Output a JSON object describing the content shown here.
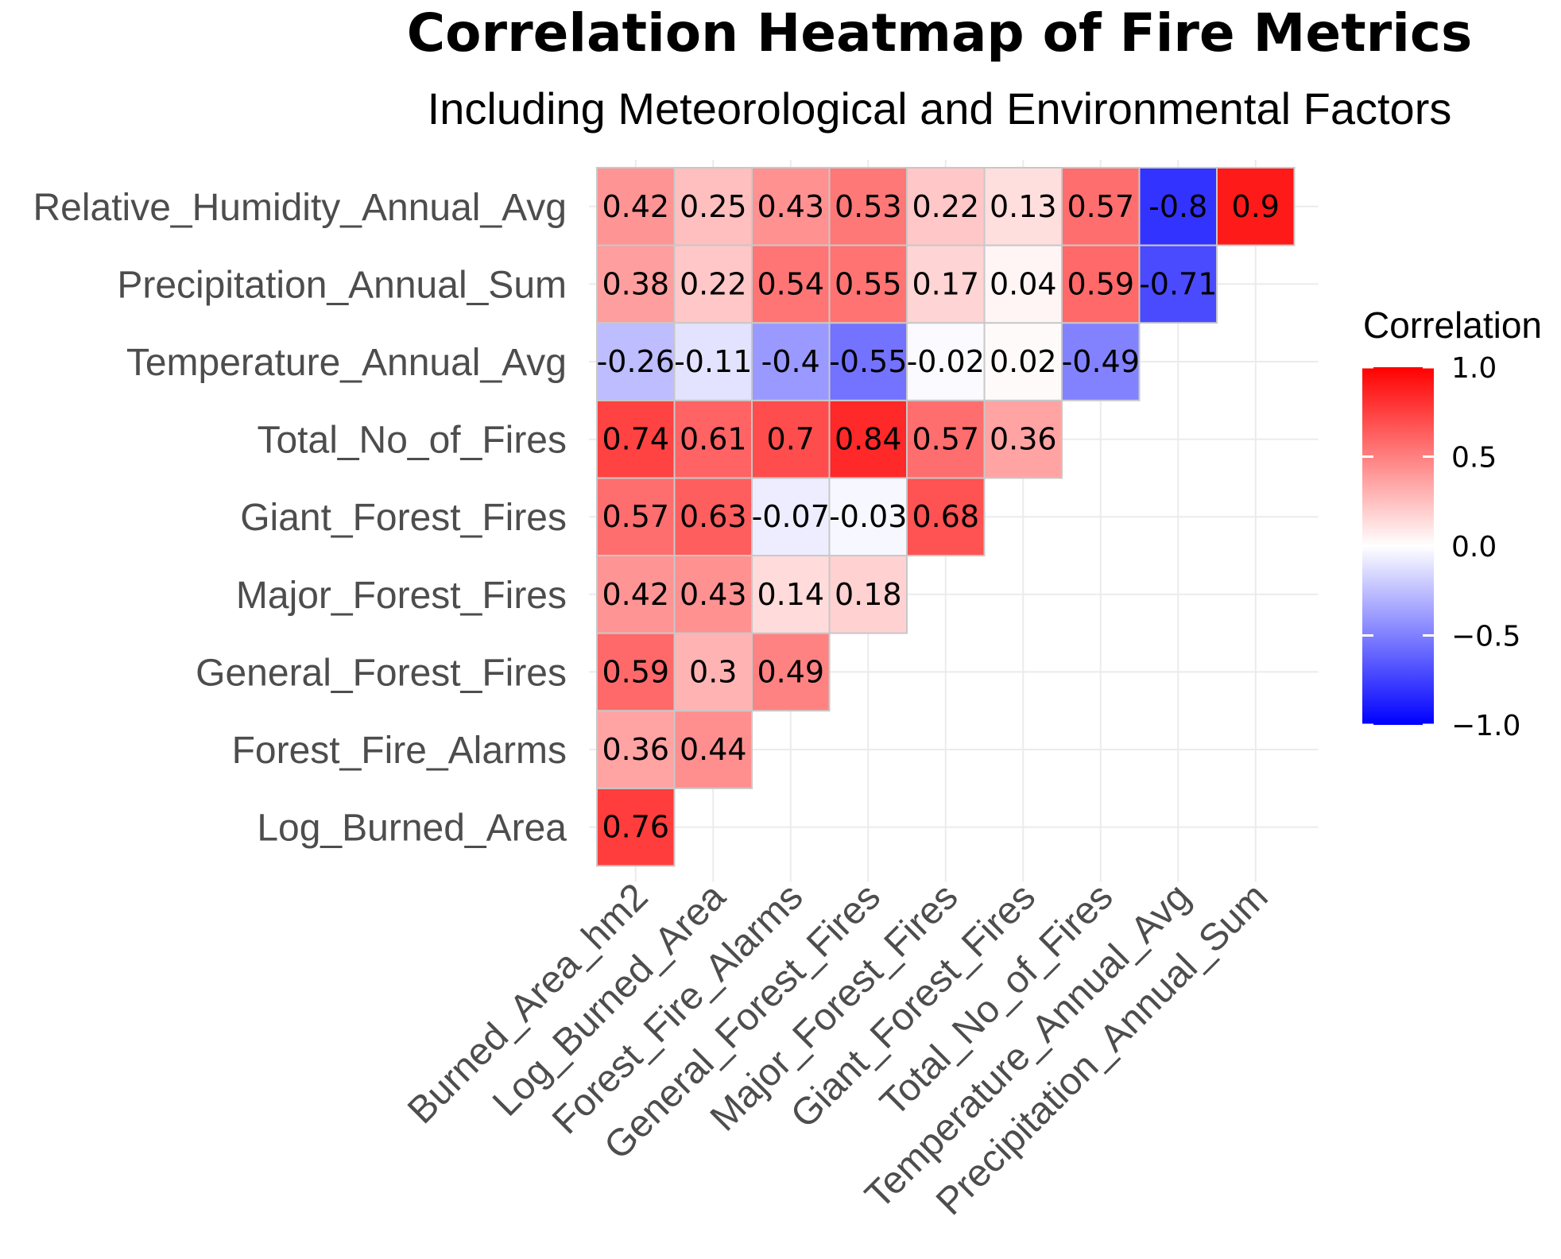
{
  "chart_data": {
    "type": "heatmap",
    "title": "Correlation Heatmap of Fire Metrics",
    "subtitle": "Including Meteorological and Environmental Factors",
    "x_categories": [
      "Burned_Area_hm2",
      "Log_Burned_Area",
      "Forest_Fire_Alarms",
      "General_Forest_Fires",
      "Major_Forest_Fires",
      "Giant_Forest_Fires",
      "Total_No_of_Fires",
      "Temperature_Annual_Avg",
      "Precipitation_Annual_Sum"
    ],
    "y_categories": [
      "Log_Burned_Area",
      "Forest_Fire_Alarms",
      "General_Forest_Fires",
      "Major_Forest_Fires",
      "Giant_Forest_Fires",
      "Total_No_of_Fires",
      "Temperature_Annual_Avg",
      "Precipitation_Annual_Sum",
      "Relative_Humidity_Annual_Avg"
    ],
    "values": [
      [
        0.76
      ],
      [
        0.36,
        0.44
      ],
      [
        0.59,
        0.3,
        0.49
      ],
      [
        0.42,
        0.43,
        0.14,
        0.18
      ],
      [
        0.57,
        0.63,
        -0.07,
        -0.03,
        0.68
      ],
      [
        0.74,
        0.61,
        0.7,
        0.84,
        0.57,
        0.36
      ],
      [
        -0.26,
        -0.11,
        -0.4,
        -0.55,
        -0.02,
        0.02,
        -0.49
      ],
      [
        0.38,
        0.22,
        0.54,
        0.55,
        0.17,
        0.04,
        0.59,
        -0.71
      ],
      [
        0.42,
        0.25,
        0.43,
        0.53,
        0.22,
        0.13,
        0.57,
        -0.8,
        0.9
      ]
    ],
    "color_scale": {
      "low": "#0000ff",
      "mid": "#ffffff",
      "high": "#ff0000",
      "domain": [
        -1,
        1
      ]
    },
    "legend": {
      "title": "Correlation",
      "ticks": [
        1.0,
        0.5,
        0.0,
        -0.5,
        -1.0
      ],
      "tick_labels": [
        "1.0",
        "0.5",
        "0.0",
        "−0.5",
        "−1.0"
      ],
      "position": "right"
    },
    "xlabel": "",
    "ylabel": "",
    "grid": true
  }
}
